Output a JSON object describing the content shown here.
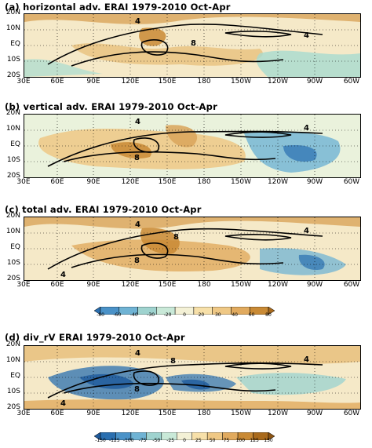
{
  "panels": [
    {
      "title": "(a) horizontal adv. ERAI 1979-2010 Oct-Apr"
    },
    {
      "title": "(b) vertical adv. ERAI 1979-2010 Oct-Apr"
    },
    {
      "title": "(c) total adv. ERAI 1979-2010 Oct-Apr"
    },
    {
      "title": "(d) div_rV ERAI 1979-2010 Oct-Apr"
    }
  ],
  "lat_ticks": [
    "20N",
    "10N",
    "EQ",
    "10S",
    "20S"
  ],
  "lon_ticks": [
    "30E",
    "60E",
    "90E",
    "120E",
    "150E",
    "180",
    "150W",
    "120W",
    "90W",
    "60W"
  ],
  "contour_labels": [
    "4",
    "8"
  ],
  "colorbar1": {
    "ticks": [
      "-80",
      "-60",
      "-40",
      "-30",
      "-20",
      "0",
      "20",
      "30",
      "40",
      "60",
      "80"
    ],
    "colors": [
      "#2a6fb0",
      "#4a92c8",
      "#6fb3d4",
      "#9fd3cf",
      "#c9e9d8",
      "#f4f1d6",
      "#f7e0a9",
      "#efc885",
      "#e1aa5e",
      "#c98a35",
      "#a96a1c"
    ]
  },
  "colorbar2": {
    "ticks": [
      "-150",
      "-125",
      "-100",
      "-75",
      "-50",
      "-25",
      "0",
      "25",
      "50",
      "75",
      "100",
      "125",
      "150"
    ],
    "colors": [
      "#1e5a9c",
      "#2a6fb0",
      "#4a92c8",
      "#6fb3d4",
      "#9fd3cf",
      "#c9e9d8",
      "#f4f1d6",
      "#f7e0a9",
      "#efc885",
      "#e1aa5e",
      "#c98a35",
      "#a96a1c",
      "#8c5412"
    ]
  },
  "chart_data": {
    "type": "heatmap",
    "panels": [
      "horizontal adv.",
      "vertical adv.",
      "total adv.",
      "div_rV"
    ],
    "dataset": "ERAI 1979-2010 Oct-Apr",
    "x_range": [
      "30E",
      "60W"
    ],
    "y_range": [
      "20S",
      "20N"
    ],
    "contour_levels": [
      4,
      8
    ],
    "colorbar_panels_abc": [
      -80,
      -60,
      -40,
      -30,
      -20,
      0,
      20,
      30,
      40,
      60,
      80
    ],
    "colorbar_panel_d": [
      -150,
      -125,
      -100,
      -75,
      -50,
      -25,
      0,
      25,
      50,
      75,
      100,
      125,
      150
    ]
  }
}
